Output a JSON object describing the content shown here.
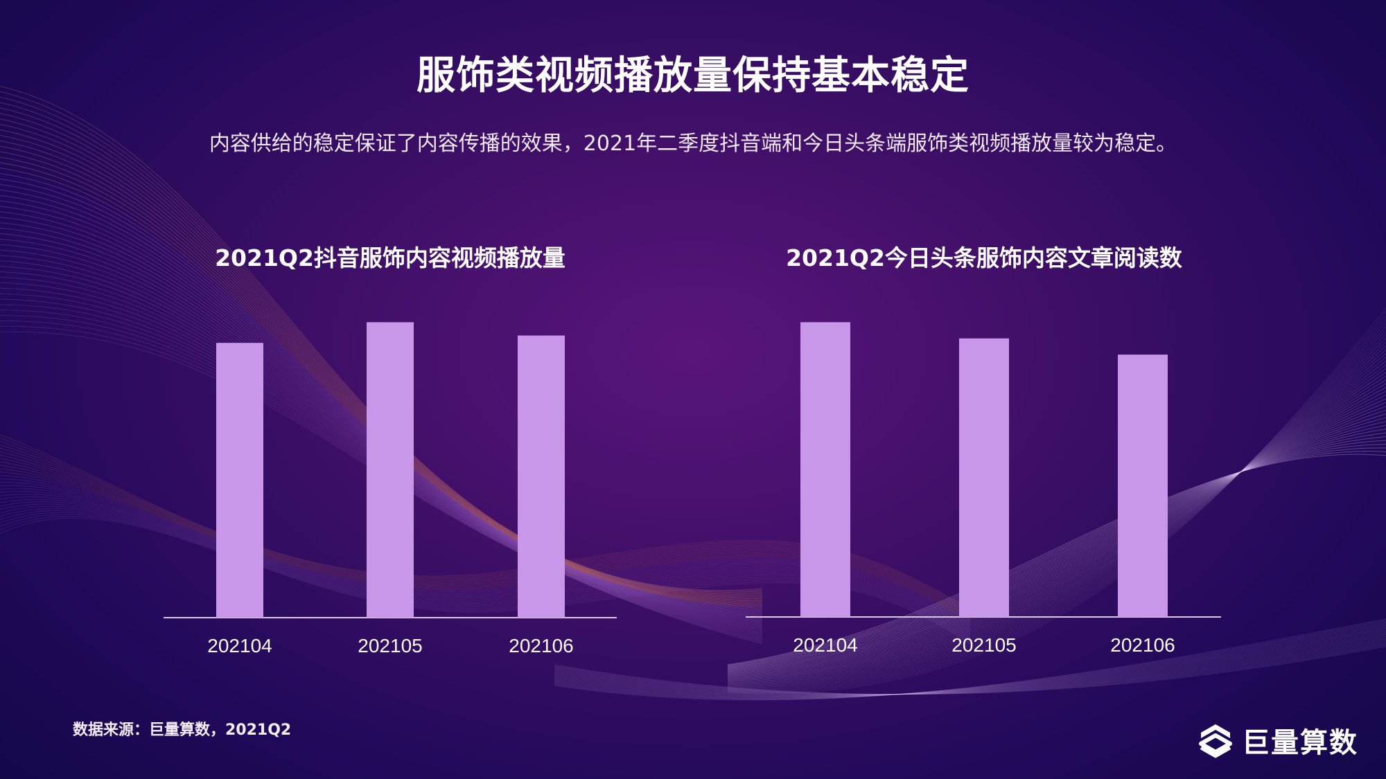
{
  "header": {
    "title": "服饰类视频播放量保持基本稳定",
    "subtitle": "内容供给的稳定保证了内容传播的效果，2021年二季度抖音端和今日头条端服饰类视频播放量较为稳定。"
  },
  "chart_data": [
    {
      "type": "bar",
      "title": "2021Q2抖音服饰内容视频播放量",
      "categories": [
        "202104",
        "202105",
        "202106"
      ],
      "values": [
        0.93,
        1.0,
        0.955
      ],
      "ylim": [
        0,
        1.05
      ],
      "grid": false,
      "bar_color": "#c997ea"
    },
    {
      "type": "bar",
      "title": "2021Q2今日头条服饰内容文章阅读数",
      "categories": [
        "202104",
        "202105",
        "202106"
      ],
      "values": [
        1.0,
        0.945,
        0.89
      ],
      "ylim": [
        0,
        1.05
      ],
      "grid": false,
      "bar_color": "#c997ea"
    }
  ],
  "footer": {
    "source": "数据来源：巨量算数，2021Q2",
    "logo_text": "巨量算数"
  },
  "colors": {
    "bar": "#c997ea",
    "axis": "#d9cbe6",
    "background": "#3d0f66"
  }
}
